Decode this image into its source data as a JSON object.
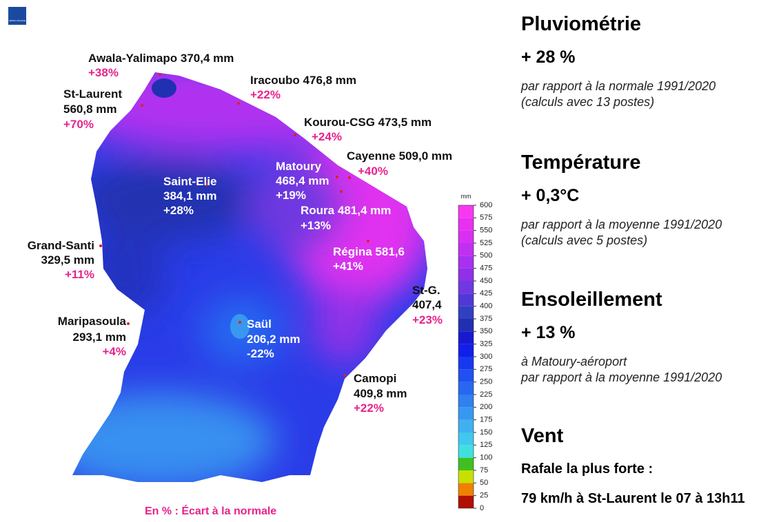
{
  "logo": "MÉTÉO FRANCE",
  "map": {
    "stations": [
      {
        "name": "Awala-Yalimapo",
        "rain": "370,4 mm",
        "anomaly": "+38%"
      },
      {
        "name": "Iracoubo",
        "rain": "476,8 mm",
        "anomaly": "+22%"
      },
      {
        "name": "St-Laurent",
        "rain": "560,8 mm",
        "anomaly": "+70%"
      },
      {
        "name": "Kourou-CSG",
        "rain": "473,5 mm",
        "anomaly": "+24%"
      },
      {
        "name": "Cayenne",
        "rain": "509,0 mm",
        "anomaly": "+40%"
      },
      {
        "name": "Matoury",
        "rain": "468,4 mm",
        "anomaly": "+19%"
      },
      {
        "name": "Saint-Elie",
        "rain": "384,1 mm",
        "anomaly": "+28%"
      },
      {
        "name": "Roura",
        "rain": "481,4 mm",
        "anomaly": "+13%"
      },
      {
        "name": "Grand-Santi",
        "rain": "329,5 mm",
        "anomaly": "+11%"
      },
      {
        "name": "Régina",
        "rain": "581,6",
        "anomaly": "+41%"
      },
      {
        "name": "St-G.",
        "rain": "407,4",
        "anomaly": "+23%"
      },
      {
        "name": "Maripasoula",
        "rain": "293,1 mm",
        "anomaly": "+4%"
      },
      {
        "name": "Saül",
        "rain": "206,2 mm",
        "anomaly": "-22%"
      },
      {
        "name": "Camopi",
        "rain": "409,8 mm",
        "anomaly": "+22%"
      }
    ],
    "footnote": "En % : Écart à la normale",
    "legend": {
      "unit": "mm",
      "ticks": [
        0,
        25,
        50,
        75,
        100,
        125,
        150,
        175,
        200,
        225,
        250,
        275,
        300,
        325,
        350,
        375,
        400,
        425,
        450,
        475,
        500,
        525,
        550,
        575,
        600
      ],
      "colors": [
        "#b01000",
        "#f08000",
        "#c8e000",
        "#40c020",
        "#40e0e0",
        "#40c8f0",
        "#40b0f0",
        "#3898f0",
        "#3080f0",
        "#2868f0",
        "#2050f0",
        "#1838f0",
        "#1020e8",
        "#1818d0",
        "#2030b0",
        "#3040c0",
        "#5038d8",
        "#7038e0",
        "#9030e8",
        "#a830f0",
        "#c030f0",
        "#d830f0",
        "#e830f0",
        "#f838f0"
      ]
    }
  },
  "summary": [
    {
      "title": "Pluviométrie",
      "value": "+ 28 %",
      "notes": [
        "par rapport à la normale 1991/2020",
        "(calculs avec 13 postes)"
      ]
    },
    {
      "title": "Température",
      "value": "+ 0,3°C",
      "notes": [
        "par rapport à la moyenne 1991/2020",
        "(calculs avec 5 postes)"
      ]
    },
    {
      "title": "Ensoleillement",
      "value": "+ 13 %",
      "notes": [
        "à Matoury-aéroport",
        "par rapport à la moyenne 1991/2020"
      ]
    },
    {
      "title": "Vent",
      "subtitle": "Rafale la plus forte :",
      "detail": "79 km/h à St-Laurent le 07 à 13h11"
    }
  ]
}
